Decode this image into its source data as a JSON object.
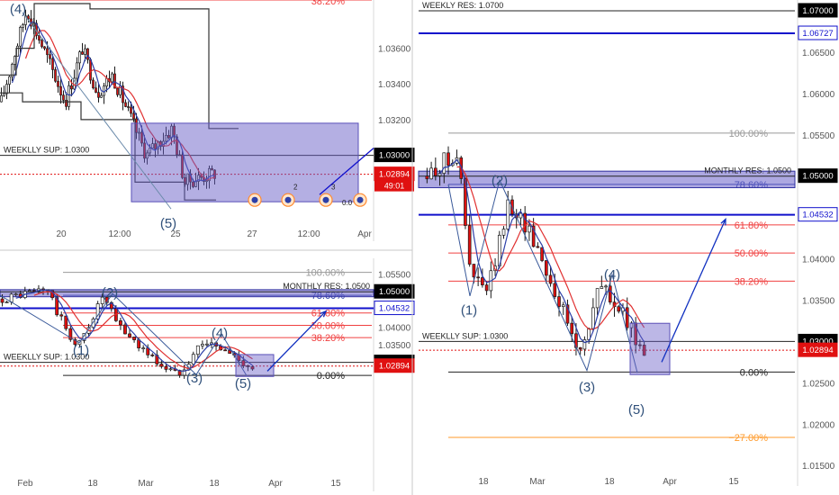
{
  "colors": {
    "up": "#ffffff",
    "down": "#e01010",
    "wick": "#1a1a1a",
    "ma_red": "#e03030",
    "ma_blue": "#2c3fa8",
    "fib_red": "#f04040",
    "fib_grey": "#999999",
    "fib_black": "#222222",
    "fib_orange": "#ff9a2a",
    "blue_level": "#1010cc",
    "zone_fill": "#6a60c8",
    "wave_label": "#30507a",
    "axis_text": "#555555",
    "black_tag": "#000000",
    "red_tag": "#e01010",
    "blue_tag": "#1010cc"
  },
  "panels": [
    {
      "id": "top-left",
      "chart_data": {
        "type": "candlestick",
        "yrange": [
          1.0262,
          1.0387
        ],
        "x_ticks": [
          "20",
          "12:00",
          "25",
          "27",
          "12:00",
          "Apr"
        ],
        "y_ticks": [
          "1.03600",
          "1.03400",
          "1.03200"
        ],
        "levels": [
          {
            "value": 1.03,
            "label": "WEEKLLY SUP: 1.0300",
            "tag": "1.03000",
            "style": "black"
          },
          {
            "value": 1.02894,
            "label": "",
            "tag": "1.02894",
            "style": "red-dotted",
            "tag_sub": "49:01"
          }
        ],
        "fib_labels": [
          {
            "value": 1.0387,
            "label": "38.20%"
          }
        ],
        "wave_labels": [
          {
            "label": "(4)",
            "value": 1.0382
          },
          {
            "label": "(5)",
            "value": 1.0262
          }
        ],
        "projection_end": 1.0304,
        "events": [
          "2",
          "3"
        ],
        "tick_misc": "0.0"
      }
    },
    {
      "id": "bottom-left",
      "chart_data": {
        "type": "candlestick",
        "yrange": [
          0.9985,
          1.0595
        ],
        "x_ticks": [
          "Feb",
          "18",
          "Mar",
          "18",
          "Apr",
          "15"
        ],
        "y_ticks": [
          "1.05500",
          "1.04000",
          "1.03500"
        ],
        "levels": [
          {
            "value": 1.05,
            "label": "MONTHLY RES: 1.0500",
            "tag": "1.05000",
            "style": "black"
          },
          {
            "value": 1.04532,
            "label": "",
            "tag": "1.04532",
            "style": "blue"
          },
          {
            "value": 1.03,
            "label": "WEEKLLY SUP: 1.0300",
            "tag": "1.03000",
            "style": "black"
          },
          {
            "value": 1.02894,
            "label": "",
            "tag": "1.02894",
            "style": "red-dotted"
          }
        ],
        "fib_levels": [
          {
            "label": "100.00%",
            "value": 1.0555,
            "color": "grey"
          },
          {
            "label": "78.60%",
            "value": 1.049,
            "color": "blue"
          },
          {
            "label": "61.80%",
            "value": 1.044,
            "color": "red"
          },
          {
            "label": "50.00%",
            "value": 1.0405,
            "color": "red"
          },
          {
            "label": "38.20%",
            "value": 1.037,
            "color": "red"
          },
          {
            "label": "0.00%",
            "value": 1.0263,
            "color": "black"
          }
        ],
        "wave_labels": [
          {
            "label": "(1)",
            "value": 1.0335
          },
          {
            "label": "(2)",
            "value": 1.0498
          },
          {
            "label": "(3)",
            "value": 1.0255
          },
          {
            "label": "(4)",
            "value": 1.0383
          },
          {
            "label": "(5)",
            "value": 1.024
          }
        ],
        "projection_end": 1.0445
      }
    },
    {
      "id": "right",
      "chart_data": {
        "type": "candlestick",
        "yrange": [
          1.0147,
          1.0713
        ],
        "x_ticks": [
          "18",
          "Mar",
          "18",
          "Apr",
          "15"
        ],
        "y_ticks": [
          "1.06500",
          "1.06000",
          "1.05500",
          "1.04000",
          "1.03500",
          "1.02500",
          "1.02000",
          "1.01500"
        ],
        "levels": [
          {
            "value": 1.07,
            "label": "WEEKLY RES: 1.0700",
            "tag": "1.07000",
            "style": "black"
          },
          {
            "value": 1.06727,
            "label": "",
            "tag": "1.06727",
            "style": "blue"
          },
          {
            "value": 1.05,
            "label": "MONTHLY RES: 1.0500",
            "tag": "1.05000",
            "style": "black"
          },
          {
            "value": 1.04532,
            "label": "",
            "tag": "1.04532",
            "style": "blue"
          },
          {
            "value": 1.03,
            "label": "WEEKLLY SUP: 1.0300",
            "tag": "1.03000",
            "style": "black"
          },
          {
            "value": 1.02894,
            "label": "",
            "tag": "1.02894",
            "style": "red-dotted"
          }
        ],
        "fib_levels": [
          {
            "label": "100.00%",
            "value": 1.0552,
            "color": "grey"
          },
          {
            "label": "78.60%",
            "value": 1.049,
            "color": "blue"
          },
          {
            "label": "61.80%",
            "value": 1.0441,
            "color": "red"
          },
          {
            "label": "50.00%",
            "value": 1.0407,
            "color": "red"
          },
          {
            "label": "38.20%",
            "value": 1.0373,
            "color": "red"
          },
          {
            "label": "0.00%",
            "value": 1.0263,
            "color": "black"
          },
          {
            "label": "−27.00%",
            "value": 1.0184,
            "color": "orange"
          }
        ],
        "wave_labels": [
          {
            "label": "(1)",
            "value": 1.0338
          },
          {
            "label": "(2)",
            "value": 1.0495
          },
          {
            "label": "(3)",
            "value": 1.0245
          },
          {
            "label": "(4)",
            "value": 1.0381
          },
          {
            "label": "(5)",
            "value": 1.0218
          }
        ],
        "projection_end": 1.0448
      }
    }
  ]
}
